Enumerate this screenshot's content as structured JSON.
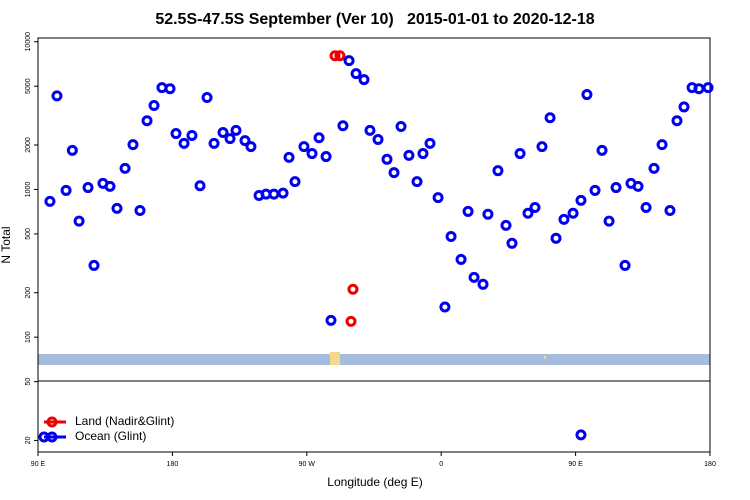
{
  "chart_data": {
    "type": "scatter",
    "title": "52.5S-47.5S September (Ver 10)   2015-01-01 to 2020-12-18",
    "x_label": "Longitude (deg E)",
    "y_label": "N Total",
    "ylog": true,
    "xlim": [
      90,
      540
    ],
    "ylim": [
      16.7,
      10600
    ],
    "xticks": [
      {
        "value": 90,
        "label": "90 E"
      },
      180,
      {
        "value": 270,
        "label": "90 W"
      },
      {
        "value": 360,
        "label": "0"
      },
      {
        "value": 450,
        "label": "90 E"
      },
      {
        "value": 540,
        "label": "180"
      }
    ],
    "yticks": [
      10000,
      5000,
      2000,
      1000,
      500,
      200,
      100,
      50,
      20
    ],
    "legend_position": "lower left",
    "series": [
      {
        "name": "Land (Nadir&Glint)",
        "color": "#ee0000",
        "x": [
          288.9,
          292.2,
          300.9,
          299.6
        ],
        "values": [
          8040,
          8040,
          211,
          128
        ]
      },
      {
        "name": "Ocean (Glint)",
        "color": "#0000ee",
        "x": [
          98.0,
          102.7,
          108.8,
          113,
          117.5,
          123.5,
          127.5,
          133.5,
          138.2,
          142.9,
          148.3,
          153.6,
          158.3,
          163,
          167.7,
          173,
          178.4,
          182.4,
          187.8,
          193.1,
          198.5,
          203.2,
          207.9,
          213.9,
          218.6,
          222.6,
          228.6,
          232.6,
          238,
          242.7,
          248,
          254.1,
          258.1,
          262.1,
          268.1,
          273.5,
          278.2,
          282.9,
          286.2,
          294.2,
          298.3,
          303,
          308.3,
          312.3,
          317.7,
          323.7,
          328.4,
          333.1,
          338.4,
          343.8,
          347.8,
          352.5,
          357.9,
          362.5,
          366.6,
          373.3,
          378,
          382,
          388,
          391.3,
          398,
          403.4,
          407.4,
          412.8,
          418.1,
          422.8,
          427.5,
          432.9,
          436.9,
          442.2,
          448.3,
          453.6,
          457.6,
          463,
          467.7,
          472.4,
          477.1,
          483.1,
          487.1,
          491.8,
          497.2,
          502.5,
          507.9,
          513.2,
          517.9,
          522.6,
          528,
          532.6,
          538.7,
          453.6
        ],
        "values": [
          830,
          4300,
          985,
          1840,
          610,
          1030,
          306,
          1100,
          1050,
          745,
          1390,
          2010,
          720,
          2920,
          3700,
          4890,
          4810,
          2390,
          2050,
          2320,
          1060,
          4190,
          2050,
          2430,
          2210,
          2510,
          2140,
          1950,
          910,
          930,
          930,
          945,
          1650,
          1130,
          1950,
          1750,
          2240,
          1670,
          130,
          2700,
          7450,
          6080,
          5540,
          2510,
          2180,
          1600,
          1300,
          2670,
          1700,
          1130,
          1750,
          2050,
          880,
          160,
          480,
          336,
          710,
          254,
          228,
          680,
          1340,
          571,
          432,
          1750,
          690,
          755,
          1950,
          3060,
          467,
          627,
          690,
          843,
          4390,
          985,
          1840,
          610,
          1030,
          306,
          1100,
          1050,
          755,
          1390,
          2010,
          720,
          2920,
          3620,
          4890,
          4810,
          4890,
          21.8
        ]
      }
    ]
  }
}
